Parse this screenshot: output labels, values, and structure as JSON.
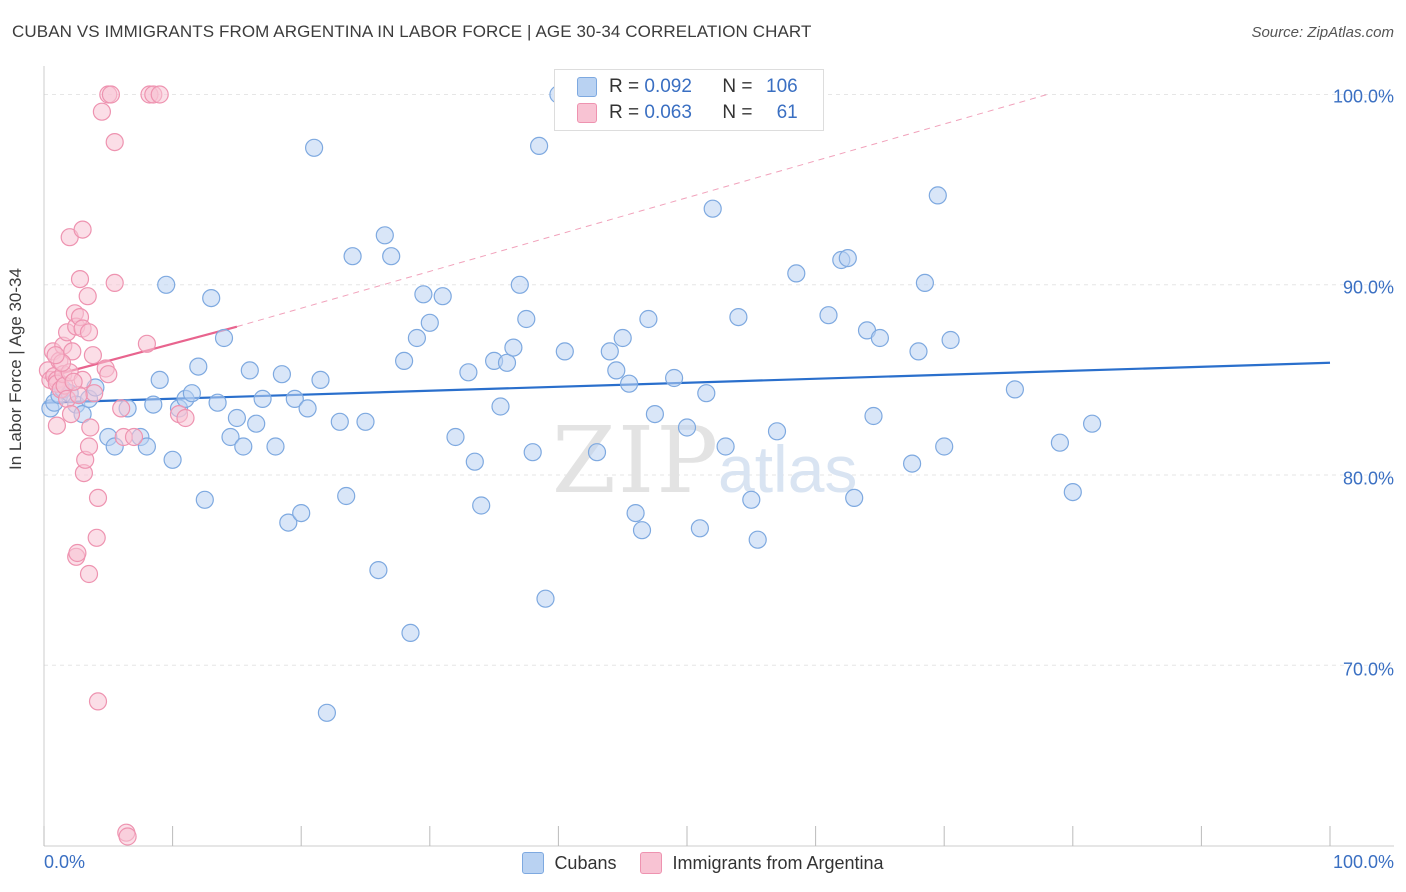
{
  "title": "CUBAN VS IMMIGRANTS FROM ARGENTINA IN LABOR FORCE | AGE 30-34 CORRELATION CHART",
  "source": "Source: ZipAtlas.com",
  "watermark": {
    "zip": "ZIP",
    "atlas": "atlas"
  },
  "colors": {
    "blue_fill": "#b9d2f2",
    "blue_stroke": "#7ea9e0",
    "blue_line": "#2a6fcc",
    "pink_fill": "#f8c3d3",
    "pink_stroke": "#ee93b0",
    "pink_line": "#e8648e",
    "tick_label": "#3a6fc2",
    "grid": "#e6e6e6"
  },
  "stats": {
    "row1": {
      "r_label": "R = ",
      "r_value": "0.092",
      "n_label": "N = ",
      "n_value": "106"
    },
    "row2": {
      "r_label": "R = ",
      "r_value": "0.063",
      "n_label": "N = ",
      "n_value": "61"
    }
  },
  "chart_data": {
    "type": "scatter",
    "title": "CUBAN VS IMMIGRANTS FROM ARGENTINA IN LABOR FORCE | AGE 30-34 CORRELATION CHART",
    "xlabel": "",
    "ylabel": "In Labor Force | Age 30-34",
    "xlim": [
      0,
      100
    ],
    "ylim": [
      60.5,
      101.5
    ],
    "x_tick_labels": [
      "0.0%",
      "100.0%"
    ],
    "y_ticks": [
      70,
      80,
      90,
      100
    ],
    "y_tick_labels": [
      "70.0%",
      "80.0%",
      "90.0%",
      "100.0%"
    ],
    "grid": true,
    "legend": [
      "Cubans",
      "Immigrants from Argentina"
    ],
    "series": [
      {
        "name": "Cubans",
        "r": 0.092,
        "n": 106,
        "trend": {
          "x0": 0,
          "y0": 83.8,
          "x1": 100,
          "y1": 85.9
        },
        "points": [
          [
            0.5,
            83.5
          ],
          [
            0.8,
            83.8
          ],
          [
            1.2,
            84.2
          ],
          [
            1.5,
            84.5
          ],
          [
            2.0,
            84.3
          ],
          [
            2.5,
            83.7
          ],
          [
            3.0,
            83.2
          ],
          [
            3.5,
            84.0
          ],
          [
            4.0,
            84.6
          ],
          [
            5.0,
            82.0
          ],
          [
            5.5,
            81.5
          ],
          [
            6.5,
            83.5
          ],
          [
            7.5,
            82.0
          ],
          [
            8.0,
            81.5
          ],
          [
            8.5,
            83.7
          ],
          [
            9.0,
            85.0
          ],
          [
            9.5,
            90.0
          ],
          [
            10.0,
            80.8
          ],
          [
            10.5,
            83.5
          ],
          [
            11.0,
            84.0
          ],
          [
            11.5,
            84.3
          ],
          [
            12.0,
            85.7
          ],
          [
            12.5,
            78.7
          ],
          [
            13.0,
            89.3
          ],
          [
            13.5,
            83.8
          ],
          [
            14.0,
            87.2
          ],
          [
            14.5,
            82.0
          ],
          [
            15.0,
            83.0
          ],
          [
            15.5,
            81.5
          ],
          [
            16.0,
            85.5
          ],
          [
            16.5,
            82.7
          ],
          [
            17.0,
            84.0
          ],
          [
            18.0,
            81.5
          ],
          [
            18.5,
            85.3
          ],
          [
            19.0,
            77.5
          ],
          [
            19.5,
            84.0
          ],
          [
            20.0,
            78.0
          ],
          [
            20.5,
            83.5
          ],
          [
            21.0,
            97.2
          ],
          [
            21.5,
            85.0
          ],
          [
            22.0,
            67.5
          ],
          [
            23.0,
            82.8
          ],
          [
            23.5,
            78.9
          ],
          [
            24.0,
            91.5
          ],
          [
            25.0,
            82.8
          ],
          [
            26.0,
            75.0
          ],
          [
            26.5,
            92.6
          ],
          [
            27.0,
            91.5
          ],
          [
            28.0,
            86.0
          ],
          [
            28.5,
            71.7
          ],
          [
            29.0,
            87.2
          ],
          [
            29.5,
            89.5
          ],
          [
            30.0,
            88.0
          ],
          [
            31.0,
            89.4
          ],
          [
            32.0,
            82.0
          ],
          [
            33.0,
            85.4
          ],
          [
            33.5,
            80.7
          ],
          [
            34.0,
            78.4
          ],
          [
            35.0,
            86.0
          ],
          [
            35.5,
            83.6
          ],
          [
            36.0,
            85.9
          ],
          [
            36.5,
            86.7
          ],
          [
            37.0,
            90.0
          ],
          [
            37.5,
            88.2
          ],
          [
            38.0,
            81.2
          ],
          [
            38.5,
            97.3
          ],
          [
            39.0,
            73.5
          ],
          [
            40.0,
            100.0
          ],
          [
            40.5,
            86.5
          ],
          [
            43.0,
            81.2
          ],
          [
            44.0,
            86.5
          ],
          [
            44.5,
            85.5
          ],
          [
            45.0,
            87.2
          ],
          [
            45.5,
            84.8
          ],
          [
            46.0,
            78.0
          ],
          [
            46.5,
            77.1
          ],
          [
            47.0,
            88.2
          ],
          [
            47.5,
            83.2
          ],
          [
            49.0,
            85.1
          ],
          [
            50.0,
            82.5
          ],
          [
            51.0,
            77.2
          ],
          [
            51.5,
            84.3
          ],
          [
            52.0,
            94.0
          ],
          [
            53.0,
            81.5
          ],
          [
            54.0,
            88.3
          ],
          [
            55.0,
            78.7
          ],
          [
            55.5,
            76.6
          ],
          [
            57.0,
            82.3
          ],
          [
            58.5,
            90.6
          ],
          [
            61.0,
            88.4
          ],
          [
            62.0,
            91.3
          ],
          [
            62.5,
            91.4
          ],
          [
            63.0,
            78.8
          ],
          [
            64.0,
            87.6
          ],
          [
            64.5,
            83.1
          ],
          [
            65.0,
            87.2
          ],
          [
            67.5,
            80.6
          ],
          [
            68.0,
            86.5
          ],
          [
            68.5,
            90.1
          ],
          [
            69.5,
            94.7
          ],
          [
            70.0,
            81.5
          ],
          [
            70.5,
            87.1
          ],
          [
            75.5,
            84.5
          ],
          [
            79.0,
            81.7
          ],
          [
            80.0,
            79.1
          ],
          [
            81.5,
            82.7
          ]
        ]
      },
      {
        "name": "Immigrants from Argentina",
        "r": 0.063,
        "n": 61,
        "trend": {
          "x0": 0,
          "y0": 85.1,
          "x1": 15,
          "y1": 87.8
        },
        "trend_extended": {
          "x0": 15,
          "y0": 87.8,
          "x1": 78,
          "y1": 100.0
        },
        "points": [
          [
            0.3,
            85.5
          ],
          [
            0.5,
            85.0
          ],
          [
            0.7,
            86.5
          ],
          [
            0.8,
            85.2
          ],
          [
            1.0,
            85.0
          ],
          [
            1.0,
            84.8
          ],
          [
            1.2,
            86.0
          ],
          [
            1.3,
            84.5
          ],
          [
            1.5,
            85.3
          ],
          [
            1.5,
            86.8
          ],
          [
            1.6,
            84.7
          ],
          [
            1.8,
            87.5
          ],
          [
            1.8,
            84.0
          ],
          [
            2.0,
            85.4
          ],
          [
            2.0,
            92.5
          ],
          [
            2.1,
            83.2
          ],
          [
            2.2,
            86.5
          ],
          [
            2.4,
            88.5
          ],
          [
            2.5,
            75.7
          ],
          [
            2.5,
            87.8
          ],
          [
            2.6,
            75.9
          ],
          [
            2.8,
            88.3
          ],
          [
            2.8,
            90.3
          ],
          [
            3.0,
            87.7
          ],
          [
            3.0,
            85.0
          ],
          [
            3.0,
            92.9
          ],
          [
            3.1,
            80.1
          ],
          [
            3.2,
            80.8
          ],
          [
            3.4,
            89.4
          ],
          [
            3.5,
            74.8
          ],
          [
            3.5,
            81.5
          ],
          [
            3.5,
            87.5
          ],
          [
            3.8,
            86.3
          ],
          [
            3.9,
            84.3
          ],
          [
            4.1,
            76.7
          ],
          [
            4.2,
            78.8
          ],
          [
            4.2,
            68.1
          ],
          [
            4.5,
            99.1
          ],
          [
            4.8,
            85.6
          ],
          [
            5.0,
            100.0
          ],
          [
            5.0,
            85.3
          ],
          [
            5.2,
            100.0
          ],
          [
            5.5,
            97.5
          ],
          [
            5.5,
            90.1
          ],
          [
            6.0,
            83.5
          ],
          [
            6.2,
            82.0
          ],
          [
            6.4,
            61.2
          ],
          [
            6.5,
            61.0
          ],
          [
            7.0,
            82.0
          ],
          [
            8.0,
            86.9
          ],
          [
            8.2,
            100.0
          ],
          [
            8.5,
            100.0
          ],
          [
            9.0,
            100.0
          ],
          [
            10.5,
            83.2
          ],
          [
            11.0,
            83.0
          ],
          [
            1.0,
            82.6
          ],
          [
            2.7,
            84.2
          ],
          [
            1.4,
            85.9
          ],
          [
            3.6,
            82.5
          ],
          [
            0.9,
            86.3
          ],
          [
            2.3,
            84.9
          ]
        ]
      }
    ]
  }
}
